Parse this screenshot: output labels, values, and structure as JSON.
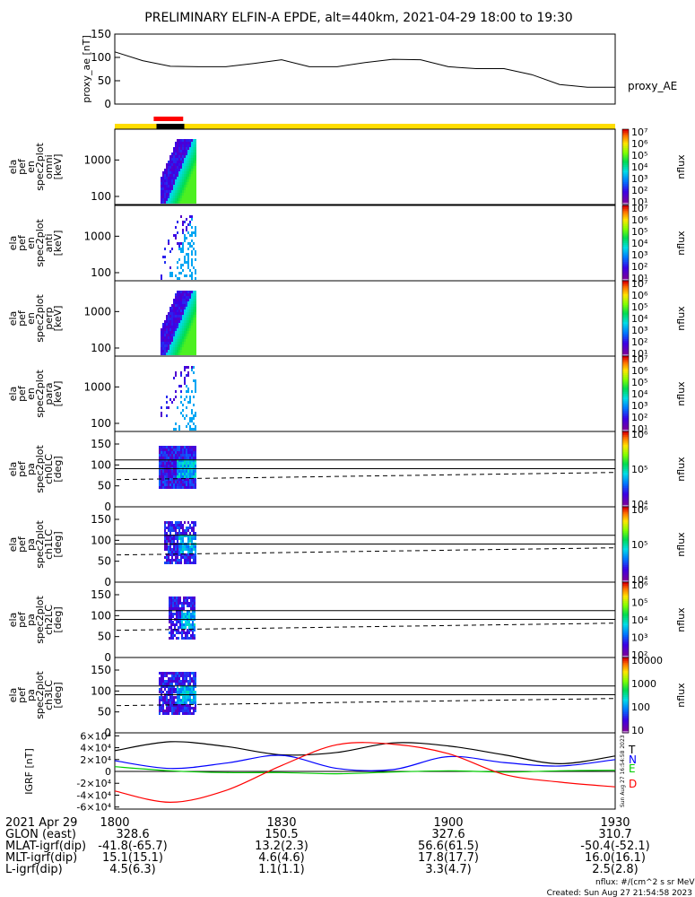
{
  "title": "PRELIMINARY ELFIN-A EPDE, alt=440km, 2021-04-29 18:00 to 19:30",
  "footer": {
    "units": "nflux: #/(cm^2 s sr MeV)",
    "created": "Created: Sun Aug 27 21:54:58 2023",
    "stamp": "Sun Aug 27 16:54:58 2023"
  },
  "chart_data": [
    {
      "type": "line",
      "panel": "proxy_ae",
      "ylabel": "proxy_ae [nT]",
      "series_label": "proxy_AE",
      "ylim": [
        0,
        150
      ],
      "yticks": [
        "150",
        "100",
        "50",
        "0"
      ],
      "x_minutes": [
        0,
        5,
        10,
        15,
        20,
        25,
        30,
        35,
        40,
        45,
        50,
        55,
        60,
        65,
        70,
        75,
        80,
        85,
        90
      ],
      "values": [
        112,
        93,
        81,
        80,
        80,
        87,
        95,
        80,
        80,
        89,
        96,
        95,
        80,
        76,
        76,
        63,
        42,
        36,
        36
      ]
    },
    {
      "type": "bar",
      "panel": "status bar",
      "segments": [
        {
          "from": 0,
          "to": 7.5,
          "color": "#ffdd00"
        },
        {
          "from": 7.5,
          "to": 12.5,
          "color": "#000000"
        },
        {
          "from": 12.5,
          "to": 90,
          "color": "#ffdd00"
        }
      ],
      "upper_segment": {
        "from": 7.0,
        "to": 12.3,
        "color": "#ff0000"
      }
    },
    {
      "type": "heatmap",
      "ylabel": "ela pef en spec2plot omni [keV]",
      "yticks": [
        "1000",
        "100"
      ],
      "colorbar_ticks": [
        "10^7",
        "10^6",
        "10^5",
        "10^4",
        "10^3",
        "10^2",
        "10^1"
      ],
      "colorbar_label": "nflux",
      "x_range": [
        7.0,
        12.4
      ],
      "y_range_keV": [
        60,
        7000
      ]
    },
    {
      "type": "heatmap",
      "ylabel": "ela pef en spec2plot anti [keV]",
      "yticks": [
        "1000",
        "100"
      ],
      "colorbar_ticks": [
        "10^7",
        "10^6",
        "10^5",
        "10^4",
        "10^3",
        "10^2",
        "10^1"
      ],
      "colorbar_label": "nflux",
      "x_range": [
        7.0,
        12.4
      ]
    },
    {
      "type": "heatmap",
      "ylabel": "ela pef en spec2plot perp [keV]",
      "yticks": [
        "1000",
        "100"
      ],
      "colorbar_ticks": [
        "10^7",
        "10^6",
        "10^5",
        "10^4",
        "10^3",
        "10^2",
        "10^1"
      ],
      "colorbar_label": "nflux",
      "x_range": [
        7.0,
        12.4
      ]
    },
    {
      "type": "heatmap",
      "ylabel": "ela pef en spec2plot para [keV]",
      "yticks": [
        "1000",
        "100"
      ],
      "colorbar_ticks": [
        "10^7",
        "10^6",
        "10^5",
        "10^4",
        "10^3",
        "10^2",
        "10^1"
      ],
      "colorbar_label": "nflux",
      "x_range": [
        7.0,
        12.4
      ]
    },
    {
      "type": "heatmap",
      "ylabel": "ela pef pa spec2plot ch0LC [deg]",
      "yticks": [
        "150",
        "100",
        "50",
        "0"
      ],
      "ylim": [
        0,
        180
      ],
      "colorbar_ticks": [
        "10^6",
        "10^5",
        "10^4"
      ],
      "colorbar_label": "nflux",
      "hlines_deg": [
        112,
        91
      ],
      "dashed_deg": [
        65,
        82
      ]
    },
    {
      "type": "heatmap",
      "ylabel": "ela pef pa spec2plot ch1LC [deg]",
      "yticks": [
        "150",
        "100",
        "50",
        "0"
      ],
      "ylim": [
        0,
        180
      ],
      "colorbar_ticks": [
        "10^6",
        "10^5",
        "10^4"
      ],
      "colorbar_label": "nflux",
      "hlines_deg": [
        112,
        91
      ],
      "dashed_deg": [
        65,
        82
      ]
    },
    {
      "type": "heatmap",
      "ylabel": "ela pef pa spec2plot ch2LC [deg]",
      "yticks": [
        "150",
        "100",
        "50",
        "0"
      ],
      "ylim": [
        0,
        180
      ],
      "colorbar_ticks": [
        "10^6",
        "10^5",
        "10^4",
        "10^3",
        "10^2"
      ],
      "colorbar_label": "nflux",
      "hlines_deg": [
        112,
        91
      ],
      "dashed_deg": [
        65,
        82
      ]
    },
    {
      "type": "heatmap",
      "ylabel": "ela pef pa spec2plot ch3LC [deg]",
      "yticks": [
        "150",
        "100",
        "50",
        "0"
      ],
      "ylim": [
        0,
        180
      ],
      "colorbar_ticks": [
        "10000",
        "1000",
        "100",
        "10"
      ],
      "colorbar_label": "nflux",
      "hlines_deg": [
        112,
        91
      ],
      "dashed_deg": [
        65,
        82
      ]
    },
    {
      "type": "line",
      "panel": "IGRF",
      "ylabel": "IGRF [nT]",
      "ylim": [
        -65000,
        65000
      ],
      "yticks": [
        "6×10^4",
        "4×10^4",
        "2×10^4",
        "0",
        "-2×10^4",
        "-4×10^4",
        "-6×10^4"
      ],
      "x_minutes": [
        0,
        10,
        20,
        30,
        40,
        50,
        60,
        70,
        80,
        90
      ],
      "series": [
        {
          "name": "T",
          "color": "#000000",
          "values": [
            35000,
            50000,
            42000,
            28000,
            32000,
            48000,
            43000,
            28000,
            13000,
            26000
          ]
        },
        {
          "name": "N",
          "color": "#0000ff",
          "values": [
            18000,
            5000,
            14000,
            27000,
            5000,
            3000,
            25000,
            15000,
            9000,
            20000
          ]
        },
        {
          "name": "E",
          "color": "#00cc00",
          "values": [
            8000,
            1000,
            -2000,
            -2000,
            -4000,
            -1000,
            1000,
            -1000,
            1000,
            2000
          ]
        },
        {
          "name": "D",
          "color": "#ff0000",
          "values": [
            -33000,
            -52000,
            -32000,
            10000,
            45000,
            46000,
            30000,
            -5000,
            -18000,
            -26000
          ]
        }
      ]
    }
  ],
  "time_axis": {
    "ticks": [
      "1800",
      "1830",
      "1900",
      "1930"
    ],
    "ticks_minutes": [
      0,
      30,
      60,
      90
    ]
  },
  "ephemeris": {
    "labels": [
      "2021 Apr 29",
      "GLON (east)",
      "MLAT-igrf(dip)",
      "MLT-igrf(dip)",
      "L-igrf(dip)"
    ],
    "columns": [
      [
        "",
        "328.6",
        "-41.8(-65.7)",
        "15.1(15.1)",
        "4.5(6.3)"
      ],
      [
        "",
        "150.5",
        "13.2(2.3)",
        "4.6(4.6)",
        "1.1(1.1)"
      ],
      [
        "",
        "327.6",
        "56.6(61.5)",
        "17.8(17.7)",
        "3.3(4.7)"
      ],
      [
        "",
        "310.7",
        "-50.4(-52.1)",
        "16.0(16.1)",
        "2.5(2.8)"
      ]
    ]
  },
  "colors": {
    "status_yellow": "#ffdd00",
    "status_black": "#000000",
    "status_red": "#ff0000"
  }
}
